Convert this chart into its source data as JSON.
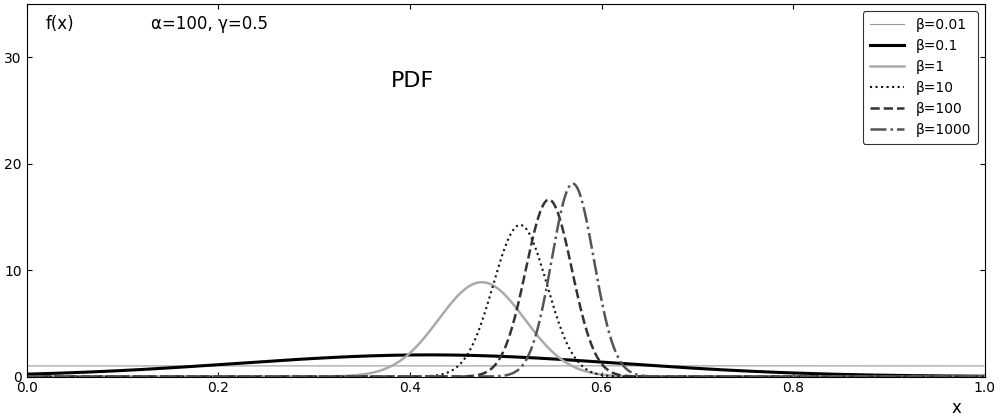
{
  "alpha": 100,
  "gamma": 0.5,
  "betas": [
    0.01,
    0.1,
    1,
    10,
    100,
    1000
  ],
  "colors": [
    "#999999",
    "#000000",
    "#aaaaaa",
    "#111111",
    "#333333",
    "#555555"
  ],
  "linestyles": [
    "-",
    "-",
    "-",
    ":",
    "--",
    "-."
  ],
  "linewidths": [
    0.8,
    2.2,
    1.8,
    1.5,
    1.8,
    1.8
  ],
  "legend_labels": [
    "β=0.01",
    "β=0.1",
    "β=1",
    "β=10",
    "β=100",
    "β=1000"
  ],
  "title_text": "f(x)",
  "param_text": "α=100, γ=0.5",
  "pdf_label": "PDF",
  "xlabel": "x",
  "xlim": [
    0,
    1
  ],
  "ylim": [
    0,
    35
  ],
  "yticks": [
    0,
    10,
    20,
    30
  ],
  "xticks": [
    0,
    0.2,
    0.4,
    0.6,
    0.8,
    1.0
  ],
  "figsize": [
    10.0,
    4.18
  ],
  "dpi": 100,
  "background_color": "#ffffff"
}
